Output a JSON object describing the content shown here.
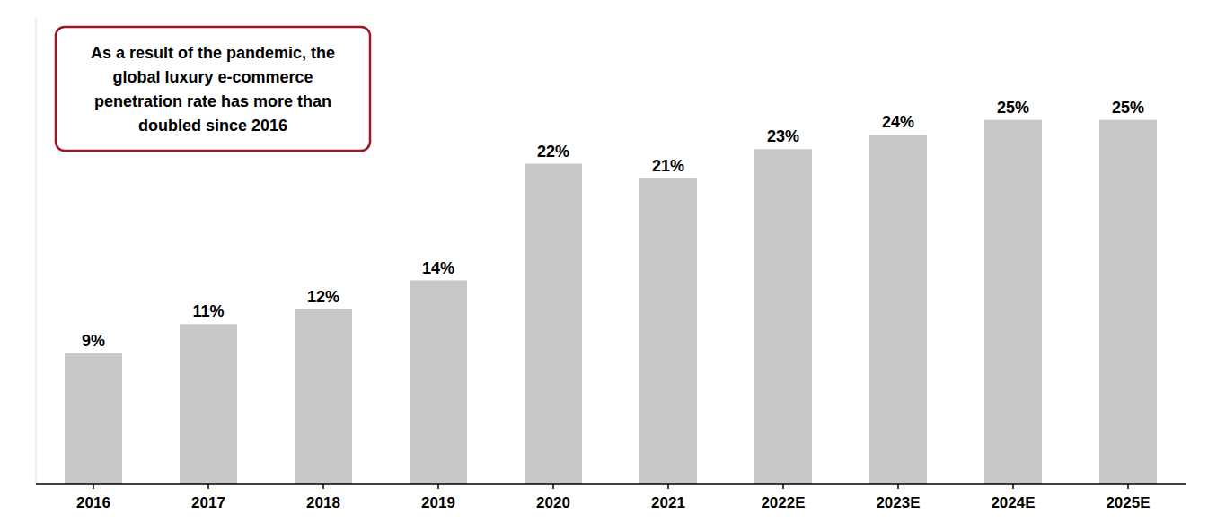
{
  "chart_data": {
    "type": "bar",
    "categories": [
      "2016",
      "2017",
      "2018",
      "2019",
      "2020",
      "2021",
      "2022E",
      "2023E",
      "2024E",
      "2025E"
    ],
    "values": [
      9,
      11,
      12,
      14,
      22,
      21,
      23,
      24,
      25,
      25
    ],
    "value_labels": [
      "9%",
      "11%",
      "12%",
      "14%",
      "22%",
      "21%",
      "23%",
      "24%",
      "25%",
      "25%"
    ],
    "data_labels": true,
    "color": "#c8c8c8",
    "ylim": [
      0,
      32
    ],
    "grid": false,
    "tick_labels": "x",
    "annotations": [
      {
        "text": "As a result of the pandemic, the\nglobal luxury e-commerce\npenetration rate has more than\ndoubled since 2016",
        "color": "#9b1726"
      }
    ]
  }
}
